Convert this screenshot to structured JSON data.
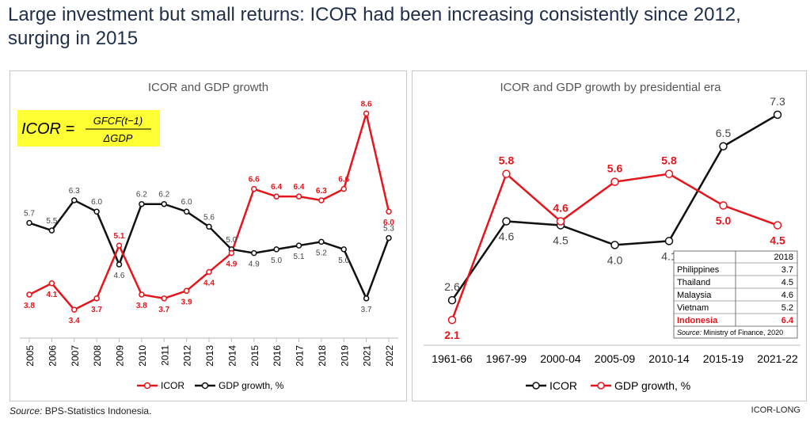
{
  "header": {
    "title": "Large investment but small returns: ICOR had been increasing consistently since 2012, surging in 2015"
  },
  "colors": {
    "icor_red": "#e8141b",
    "gdp_black": "#111111",
    "formula_bg": "#ffff33"
  },
  "formula": {
    "lhs": "ICOR =",
    "numerator": "GFCF(t−1)",
    "denominator": "ΔGDP"
  },
  "footer": {
    "source_label": "Source:",
    "source_text": " BPS-Statistics Indonesia.",
    "tag": "ICOR-LONG"
  },
  "chart_data": [
    {
      "type": "line",
      "title": "ICOR and GDP growth",
      "categories": [
        "2005",
        "2006",
        "2007",
        "2008",
        "2009",
        "2010",
        "2011",
        "2012",
        "2013",
        "2014",
        "2015",
        "2016",
        "2017",
        "2018",
        "2019",
        "2021",
        "2022"
      ],
      "ylim": [
        2.5,
        9.3
      ],
      "series": [
        {
          "name": "ICOR",
          "color": "#e8141b",
          "label_color": "#e8141b",
          "values": [
            3.8,
            4.1,
            3.4,
            3.7,
            5.1,
            3.8,
            3.7,
            3.9,
            4.4,
            4.9,
            6.6,
            6.4,
            6.4,
            6.3,
            6.6,
            8.6,
            6.0
          ]
        },
        {
          "name": "GDP growth, %",
          "color": "#111111",
          "label_color": "#444444",
          "values": [
            5.7,
            5.5,
            6.3,
            6.0,
            4.6,
            6.2,
            6.2,
            6.0,
            5.6,
            5.0,
            4.9,
            5.0,
            5.1,
            5.2,
            5.0,
            3.7,
            5.3
          ]
        }
      ],
      "legend": [
        "ICOR",
        "GDP growth, %"
      ]
    },
    {
      "type": "line",
      "title": "ICOR and GDP growth by presidential era",
      "categories": [
        "1961-66",
        "1967-99",
        "2000-04",
        "2005-09",
        "2010-14",
        "2015-19",
        "2021-22"
      ],
      "ylim": [
        1.5,
        8.0
      ],
      "series": [
        {
          "name": "ICOR",
          "color": "#111111",
          "label_color": "#444444",
          "values": [
            2.6,
            4.6,
            4.5,
            4.0,
            4.1,
            6.5,
            7.3
          ]
        },
        {
          "name": "GDP growth, %",
          "color": "#e8141b",
          "label_color": "#e8141b",
          "values": [
            2.1,
            5.8,
            4.6,
            5.6,
            5.8,
            5.0,
            4.5
          ]
        }
      ],
      "legend": [
        "ICOR",
        "GDP growth, %"
      ],
      "inset_table": {
        "header": "2018",
        "rows": [
          {
            "country": "Philippines",
            "value": "3.7",
            "highlight": false
          },
          {
            "country": "Thailand",
            "value": "4.5",
            "highlight": false
          },
          {
            "country": "Malaysia",
            "value": "4.6",
            "highlight": false
          },
          {
            "country": "Vietnam",
            "value": "5.2",
            "highlight": false
          },
          {
            "country": "Indonesia",
            "value": "6.4",
            "highlight": true
          }
        ],
        "source_label": "Source:",
        "source_text": "  Ministry of Finance, 2020"
      }
    }
  ]
}
